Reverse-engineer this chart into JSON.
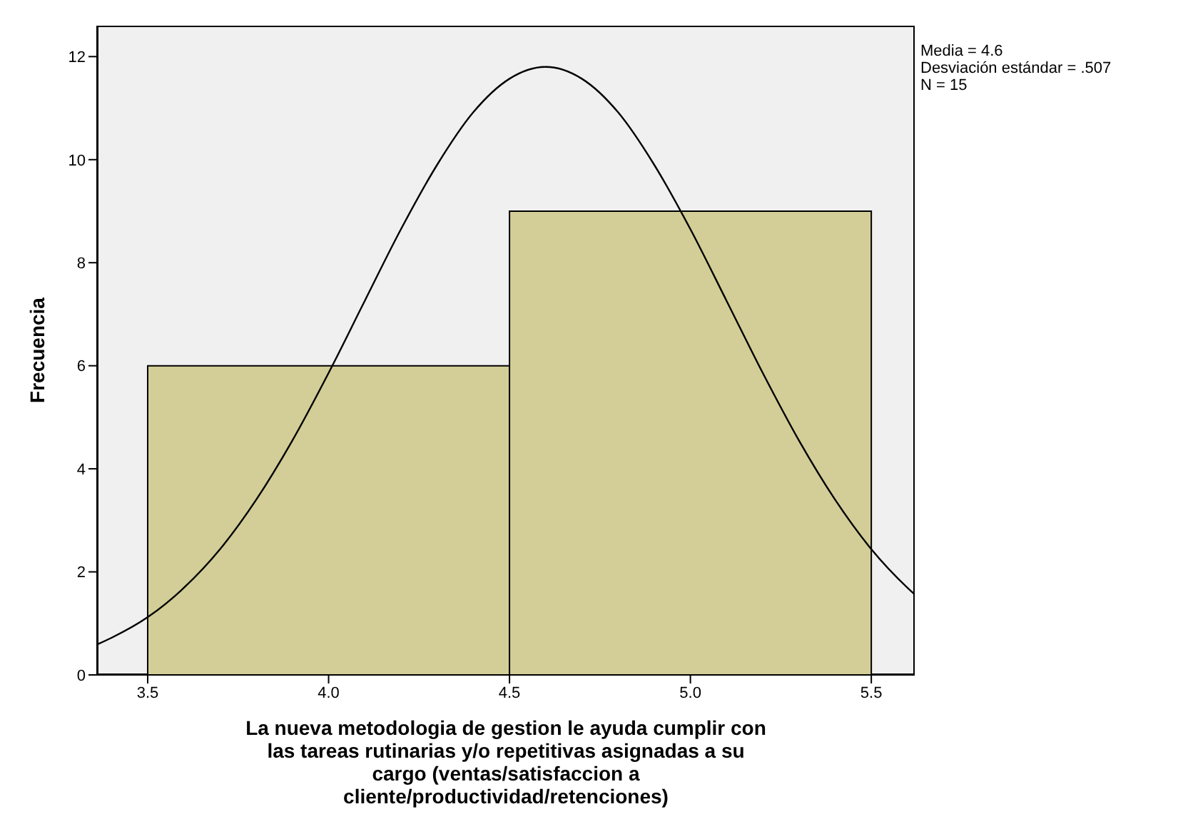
{
  "chart_data": {
    "type": "histogram",
    "xlabel": "La nueva metodologia de gestion  le ayuda cumplir con las tareas rutinarias y/o repetitivas asignadas a su cargo (ventas/satisfaccion a cliente/productividad/retenciones)",
    "ylabel": "Frecuencia",
    "bins": [
      3.5,
      4.5,
      5.5
    ],
    "values": [
      6,
      9
    ],
    "color": "#d3ce97",
    "series": [
      {
        "type": "line",
        "color": "#000000",
        "x": [
          3.36,
          3.4,
          3.5,
          3.6,
          3.7,
          3.8,
          3.9,
          4.0,
          4.1,
          4.2,
          4.3,
          4.4,
          4.5,
          4.6,
          4.7,
          4.8,
          4.9,
          5.0,
          5.1,
          5.2,
          5.3,
          5.4,
          5.5,
          5.6,
          5.62
        ],
        "values": [
          0.59,
          0.72,
          1.12,
          1.69,
          2.44,
          3.4,
          4.55,
          5.86,
          7.26,
          8.65,
          9.9,
          10.92,
          11.57,
          11.8,
          11.57,
          10.92,
          9.9,
          8.65,
          7.26,
          5.86,
          4.55,
          3.4,
          2.44,
          1.69,
          1.56
        ]
      }
    ],
    "xlim": [
      3.36,
      5.62
    ],
    "xticks": [
      3.5,
      {
        "value": 4,
        "label": "4.0"
      },
      4.5,
      {
        "value": 5,
        "label": "5.0"
      },
      5.5
    ],
    "ylim": [
      0,
      12.6
    ],
    "yticks": [
      0,
      2,
      4,
      6,
      8,
      10,
      12
    ],
    "annotations": [
      "Media = 4.6",
      "Desviación estándar = .507",
      "N = 15"
    ]
  }
}
